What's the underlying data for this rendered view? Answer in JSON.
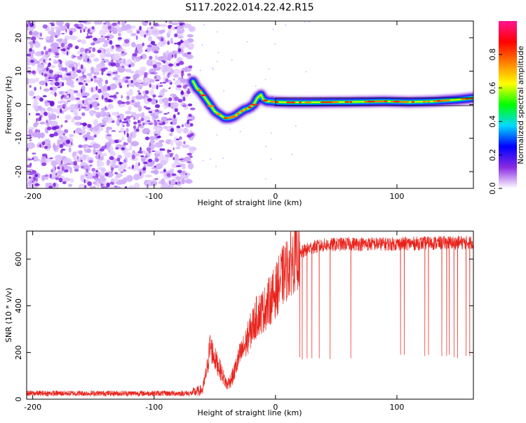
{
  "figure": {
    "title": "S117.2022.014.22.42.R15"
  },
  "chart_data": [
    {
      "type": "heatmap",
      "xlabel": "Height of straight line (km)",
      "ylabel": "Frequency (Hz)",
      "xlim": [
        -205,
        163
      ],
      "ylim": [
        -25,
        25
      ],
      "x_ticks": [
        -200,
        -100,
        0,
        100
      ],
      "y_ticks": [
        -20,
        -10,
        0,
        10,
        20
      ],
      "noise_region_x": [
        -205,
        -68
      ],
      "signal_track": {
        "x": [
          -68,
          -65,
          -62,
          -58,
          -54,
          -50,
          -46,
          -42,
          -38,
          -34,
          -30,
          -26,
          -22,
          -18,
          -15,
          -12,
          -10,
          -7,
          -4,
          0,
          10,
          30,
          60,
          90,
          110,
          130,
          150,
          163
        ],
        "y": [
          7,
          5,
          4,
          2,
          0,
          -2,
          -3,
          -4,
          -4,
          -3.5,
          -2.5,
          -1.5,
          -1,
          0,
          2,
          3,
          1.5,
          1,
          1,
          0.8,
          0.7,
          0.7,
          0.8,
          1,
          0.8,
          1,
          1.5,
          2
        ]
      },
      "colorbar": {
        "label": "Normalized spectral amplitude",
        "range": [
          0,
          1
        ],
        "ticks": [
          0.0,
          0.2,
          0.4,
          0.6,
          0.8
        ],
        "colormap": [
          "#ffffff",
          "#8a2be2",
          "#0000ff",
          "#00d9ff",
          "#00ff00",
          "#ffff00",
          "#ff8000",
          "#ff0000",
          "#ff1493"
        ]
      },
      "grid": false
    },
    {
      "type": "line",
      "xlabel": "Height of straight line (km)",
      "ylabel": "SNR (10 * v/v)",
      "xlim": [
        -205,
        163
      ],
      "ylim": [
        0,
        720
      ],
      "x_ticks": [
        -200,
        -100,
        0,
        100
      ],
      "y_ticks": [
        0,
        200,
        400,
        600
      ],
      "series": [
        {
          "color": "#e8231c",
          "envelope_x": [
            -205,
            -70,
            -60,
            -56,
            -54,
            -50,
            -45,
            -40,
            -35,
            -30,
            -25,
            -20,
            -15,
            -10,
            -5,
            0,
            5,
            10,
            15,
            20,
            25,
            30,
            40,
            60,
            80,
            100,
            120,
            140,
            163
          ],
          "envelope_y": [
            25,
            25,
            40,
            140,
            230,
            175,
            120,
            60,
            100,
            180,
            230,
            300,
            360,
            380,
            420,
            460,
            520,
            560,
            600,
            620,
            640,
            650,
            660,
            665,
            665,
            665,
            668,
            670,
            672
          ],
          "dropouts_x": [
            20,
            22,
            26,
            30,
            36,
            45,
            62,
            103,
            106,
            123,
            126,
            137,
            141,
            143,
            147,
            150,
            157,
            160
          ],
          "dropouts_y": [
            180,
            170,
            175,
            175,
            175,
            172,
            175,
            190,
            190,
            185,
            190,
            185,
            185,
            190,
            180,
            175,
            185,
            185
          ]
        }
      ],
      "grid": false
    }
  ]
}
